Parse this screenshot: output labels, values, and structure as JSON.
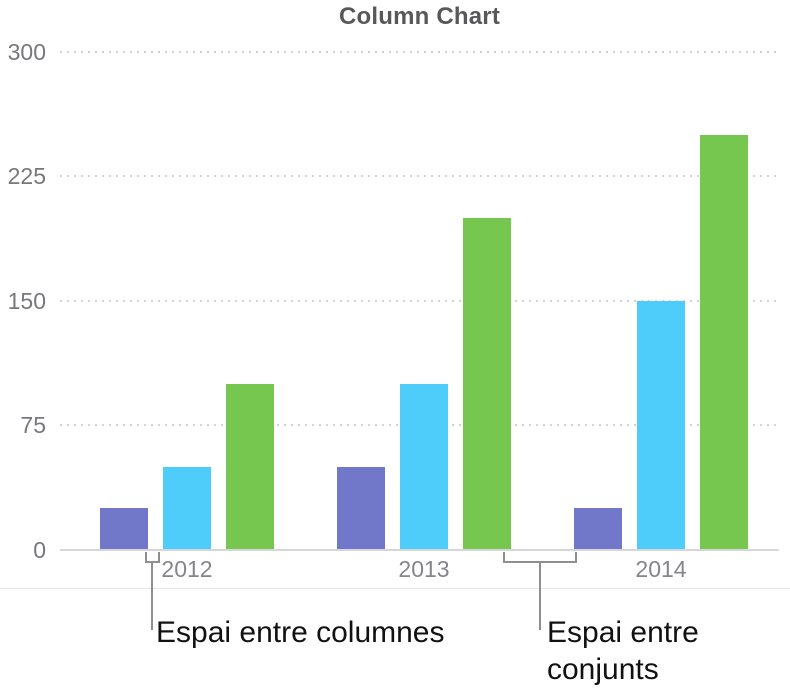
{
  "chart_data": {
    "type": "bar",
    "title": "Column Chart",
    "categories": [
      "2012",
      "2013",
      "2014"
    ],
    "series": [
      {
        "name": "series-1-purple",
        "color": "#7177c9",
        "values": [
          25,
          50,
          25
        ]
      },
      {
        "name": "series-2-cyan",
        "color": "#4ecdfa",
        "values": [
          50,
          100,
          150
        ]
      },
      {
        "name": "series-3-green",
        "color": "#75c750",
        "values": [
          100,
          200,
          250
        ]
      }
    ],
    "xlabel": "",
    "ylabel": "",
    "ylim": [
      0,
      300
    ],
    "yticks": [
      0,
      75,
      150,
      225,
      300
    ],
    "grid": "horizontal-dotted",
    "legend": "none",
    "annotations": [
      {
        "text": "Espai entre columnes",
        "target": "gap-between-columns"
      },
      {
        "text": "Espai entre conjunts",
        "target": "gap-between-groups"
      }
    ]
  }
}
